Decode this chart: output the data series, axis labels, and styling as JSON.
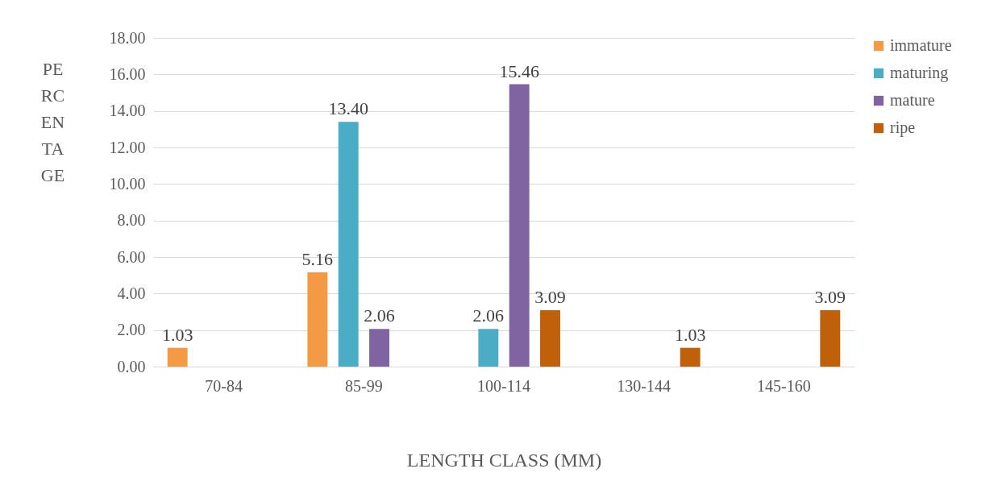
{
  "chart_data": {
    "type": "bar",
    "xlabel": "LENGTH CLASS (MM)",
    "ylabel": "PERCENTAGE",
    "categories": [
      "70-84",
      "85-99",
      "100-114",
      "130-144",
      "145-160"
    ],
    "series": [
      {
        "name": "immature",
        "color": "#f59a44",
        "values": [
          1.03,
          5.16,
          null,
          null,
          null
        ],
        "value_labels": [
          "1.03",
          "5.16",
          null,
          null,
          null
        ]
      },
      {
        "name": "maturing",
        "color": "#4bacc6",
        "values": [
          null,
          13.4,
          2.06,
          null,
          null
        ],
        "value_labels": [
          null,
          "13.40",
          "2.06",
          null,
          null
        ]
      },
      {
        "name": "mature",
        "color": "#8064a2",
        "values": [
          null,
          2.06,
          15.46,
          null,
          null
        ],
        "value_labels": [
          null,
          "2.06",
          "15.46",
          null,
          null
        ]
      },
      {
        "name": "ripe",
        "color": "#c0600a",
        "values": [
          null,
          null,
          3.09,
          1.03,
          3.09
        ],
        "value_labels": [
          null,
          null,
          "3.09",
          "1.03",
          "3.09"
        ]
      }
    ],
    "ylim": [
      0,
      18
    ],
    "yticks": [
      {
        "value": 0,
        "label": "0.00"
      },
      {
        "value": 2,
        "label": "2.00"
      },
      {
        "value": 4,
        "label": "4.00"
      },
      {
        "value": 6,
        "label": "6.00"
      },
      {
        "value": 8,
        "label": "8.00"
      },
      {
        "value": 10,
        "label": "10.00"
      },
      {
        "value": 12,
        "label": "12.00"
      },
      {
        "value": 14,
        "label": "14.00"
      },
      {
        "value": 16,
        "label": "16.00"
      },
      {
        "value": 18,
        "label": "18.00"
      }
    ],
    "grid": "y",
    "legend": "right"
  }
}
